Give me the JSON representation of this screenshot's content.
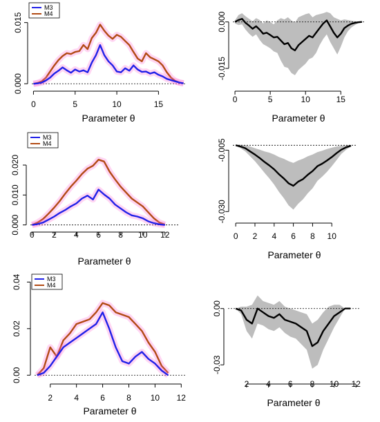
{
  "chart_data": [
    {
      "type": "line",
      "xlabel": "Parameter θ",
      "ylabel": "",
      "xlim": [
        -0.2,
        18.2
      ],
      "ylim": [
        -0.0008,
        0.0185
      ],
      "xticks": [
        0,
        5,
        10,
        15
      ],
      "yticks": [
        0.0,
        0.015
      ],
      "ytick_labels": [
        "0.000",
        "0.015"
      ],
      "xtick_labels": [
        "0",
        "5",
        "10",
        "15"
      ],
      "legend": {
        "position": "top-left",
        "entries": [
          "M3",
          "M4"
        ]
      },
      "series": [
        {
          "name": "M3",
          "color": "#2020e8",
          "x": [
            0,
            0.5,
            1,
            1.5,
            2,
            2.5,
            3,
            3.5,
            4,
            4.5,
            5,
            5.5,
            6,
            6.5,
            7,
            7.5,
            8,
            8.5,
            9,
            9.5,
            10,
            10.5,
            11,
            11.5,
            12,
            12.5,
            13,
            13.5,
            14,
            14.5,
            15,
            15.5,
            16,
            16.5,
            17,
            17.5,
            18
          ],
          "y": [
            0.0,
            0.0001,
            0.0003,
            0.0008,
            0.0015,
            0.0025,
            0.0032,
            0.004,
            0.0033,
            0.0027,
            0.0035,
            0.003,
            0.0033,
            0.0028,
            0.0052,
            0.007,
            0.0095,
            0.007,
            0.0055,
            0.0045,
            0.003,
            0.0028,
            0.0038,
            0.0032,
            0.0045,
            0.0035,
            0.0029,
            0.003,
            0.0025,
            0.0028,
            0.0022,
            0.0018,
            0.0012,
            0.0009,
            0.0006,
            0.0003,
            0.0001
          ]
        },
        {
          "name": "M4",
          "color": "#b24a14",
          "x": [
            0,
            0.5,
            1,
            1.5,
            2,
            2.5,
            3,
            3.5,
            4,
            4.5,
            5,
            5.5,
            6,
            6.5,
            7,
            7.5,
            8,
            8.5,
            9,
            9.5,
            10,
            10.5,
            11,
            11.5,
            12,
            12.5,
            13,
            13.5,
            14,
            14.5,
            15,
            15.5,
            16,
            16.5,
            17,
            17.5,
            18
          ],
          "y": [
            0.0,
            0.0002,
            0.0006,
            0.0015,
            0.003,
            0.0045,
            0.0058,
            0.0068,
            0.0075,
            0.0073,
            0.0078,
            0.008,
            0.0095,
            0.0085,
            0.0112,
            0.0125,
            0.0145,
            0.013,
            0.0118,
            0.011,
            0.012,
            0.0115,
            0.0105,
            0.0095,
            0.0078,
            0.0062,
            0.0055,
            0.0075,
            0.0065,
            0.006,
            0.0055,
            0.0045,
            0.0028,
            0.0015,
            0.0007,
            0.0003,
            0.0001
          ]
        }
      ]
    },
    {
      "type": "area",
      "xlabel": "Parameter θ",
      "ylabel": "",
      "xlim": [
        -0.3,
        18.3
      ],
      "ylim": [
        -0.021,
        0.0035
      ],
      "xticks": [
        0,
        5,
        10,
        15
      ],
      "yticks": [
        0.0,
        -0.015
      ],
      "ytick_labels": [
        "0.000",
        "-0.015"
      ],
      "xtick_labels": [
        "0",
        "5",
        "10",
        "15"
      ],
      "hline": 0,
      "series": [
        {
          "name": "mean",
          "color": "#000000",
          "x": [
            0,
            0.5,
            1,
            1.5,
            2,
            2.5,
            3,
            3.5,
            4,
            4.5,
            5,
            5.5,
            6,
            6.5,
            7,
            7.5,
            8,
            8.5,
            9,
            9.5,
            10,
            10.5,
            11,
            11.5,
            12,
            12.5,
            13,
            13.5,
            14,
            14.5,
            15,
            15.5,
            16,
            16.5,
            17,
            17.5,
            18
          ],
          "y": [
            0.0,
            0.0006,
            0.001,
            -0.0003,
            -0.0012,
            -0.0022,
            -0.0014,
            -0.0025,
            -0.0038,
            -0.0035,
            -0.0042,
            -0.005,
            -0.0048,
            -0.006,
            -0.0072,
            -0.0068,
            -0.0085,
            -0.0092,
            -0.0075,
            -0.0065,
            -0.0055,
            -0.0045,
            -0.005,
            -0.0035,
            -0.002,
            -0.0005,
            0.0005,
            -0.0015,
            -0.0035,
            -0.005,
            -0.0038,
            -0.002,
            -0.0012,
            -0.0006,
            -0.0003,
            -0.0001,
            0.0
          ]
        },
        {
          "name": "band",
          "color": "#bdbdbd",
          "x": [
            0,
            0.5,
            1,
            1.5,
            2,
            2.5,
            3,
            3.5,
            4,
            4.5,
            5,
            5.5,
            6,
            6.5,
            7,
            7.5,
            8,
            8.5,
            9,
            9.5,
            10,
            10.5,
            11,
            11.5,
            12,
            12.5,
            13,
            13.5,
            14,
            14.5,
            15,
            15.5,
            16,
            16.5,
            17,
            17.5,
            18
          ],
          "upper": [
            0.0005,
            0.0022,
            0.0028,
            0.0018,
            0.001,
            0.0002,
            0.0012,
            0.0006,
            -0.0005,
            0.0005,
            0.0,
            -0.0008,
            0.0005,
            0.0012,
            0.0008,
            0.0015,
            0.0005,
            -0.0002,
            0.0015,
            0.002,
            0.0025,
            0.0028,
            0.0015,
            0.0022,
            0.0025,
            0.0028,
            0.0032,
            0.0028,
            0.0015,
            0.001,
            0.0005,
            0.0008,
            0.0006,
            0.0004,
            0.0002,
            0.0001,
            0.0
          ],
          "lower": [
            -0.0005,
            -0.001,
            -0.0008,
            -0.0025,
            -0.0038,
            -0.0048,
            -0.004,
            -0.0058,
            -0.0072,
            -0.0078,
            -0.0085,
            -0.0095,
            -0.01,
            -0.0125,
            -0.0145,
            -0.0148,
            -0.0165,
            -0.0172,
            -0.0155,
            -0.0145,
            -0.0135,
            -0.012,
            -0.0115,
            -0.01,
            -0.0075,
            -0.0055,
            -0.004,
            -0.0065,
            -0.0085,
            -0.0105,
            -0.008,
            -0.005,
            -0.003,
            -0.0018,
            -0.001,
            -0.0004,
            -0.0002
          ]
        }
      ]
    },
    {
      "type": "line",
      "xlabel": "Parameter θ",
      "ylabel": "",
      "xlim": [
        -0.15,
        13.2
      ],
      "ylim": [
        -0.001,
        0.029
      ],
      "xticks": [
        0,
        2,
        4,
        6,
        8,
        10,
        12
      ],
      "yticks": [
        0.0,
        0.01,
        0.02
      ],
      "ytick_labels": [
        "0.000",
        "0.010",
        "0.020"
      ],
      "xtick_labels": [
        "0",
        "2",
        "4",
        "6",
        "8",
        "10",
        "12"
      ],
      "legend": {
        "position": "top-left",
        "entries": [
          "M3",
          "M4"
        ]
      },
      "series": [
        {
          "name": "M3",
          "color": "#2020e8",
          "x": [
            0,
            0.5,
            1,
            1.5,
            2,
            2.5,
            3,
            3.5,
            4,
            4.5,
            5,
            5.5,
            6,
            6.5,
            7,
            7.5,
            8,
            8.5,
            9,
            9.5,
            10,
            10.5,
            11,
            11.5,
            12
          ],
          "y": [
            0.0,
            0.0003,
            0.0008,
            0.0018,
            0.0028,
            0.004,
            0.005,
            0.0062,
            0.0072,
            0.0088,
            0.0098,
            0.0085,
            0.0118,
            0.0102,
            0.0088,
            0.0068,
            0.0055,
            0.0042,
            0.0032,
            0.0028,
            0.0022,
            0.0012,
            0.0006,
            0.0002,
            0.0
          ]
        },
        {
          "name": "M4",
          "color": "#b24a14",
          "x": [
            0,
            0.5,
            1,
            1.5,
            2,
            2.5,
            3,
            3.5,
            4,
            4.5,
            5,
            5.5,
            6,
            6.5,
            7,
            7.5,
            8,
            8.5,
            9,
            9.5,
            10,
            10.5,
            11,
            11.5,
            12
          ],
          "y": [
            0.0,
            0.0008,
            0.002,
            0.0038,
            0.0058,
            0.008,
            0.0105,
            0.0128,
            0.0148,
            0.017,
            0.0188,
            0.0198,
            0.0218,
            0.0212,
            0.0178,
            0.0152,
            0.0128,
            0.0108,
            0.0088,
            0.0075,
            0.0062,
            0.0042,
            0.0022,
            0.0008,
            0.0001
          ]
        }
      ]
    },
    {
      "type": "area",
      "xlabel": "Parameter θ",
      "ylabel": "",
      "xlim": [
        -0.3,
        12.5
      ],
      "ylim": [
        -0.033,
        -0.0015
      ],
      "xticks": [
        0,
        2,
        4,
        6,
        8,
        10
      ],
      "yticks": [
        -0.005,
        -0.03
      ],
      "ytick_labels": [
        "-0.005",
        "-0.030"
      ],
      "xtick_labels": [
        "0",
        "2",
        "4",
        "6",
        "8",
        "10"
      ],
      "hline": -0.003,
      "series": [
        {
          "name": "mean",
          "color": "#000000",
          "x": [
            0,
            0.5,
            1,
            1.5,
            2,
            2.5,
            3,
            3.5,
            4,
            4.5,
            5,
            5.5,
            6,
            6.5,
            7,
            7.5,
            8,
            8.5,
            9,
            9.5,
            10,
            10.5,
            11,
            11.5,
            12
          ],
          "y": [
            -0.003,
            -0.0035,
            -0.0042,
            -0.0055,
            -0.0068,
            -0.0082,
            -0.0098,
            -0.0112,
            -0.0128,
            -0.0148,
            -0.0165,
            -0.0185,
            -0.0195,
            -0.0178,
            -0.0168,
            -0.015,
            -0.0135,
            -0.0115,
            -0.0105,
            -0.0092,
            -0.0078,
            -0.0062,
            -0.0048,
            -0.0038,
            -0.0032
          ]
        },
        {
          "name": "band",
          "color": "#bdbdbd",
          "x": [
            0,
            0.5,
            1,
            1.5,
            2,
            2.5,
            3,
            3.5,
            4,
            4.5,
            5,
            5.5,
            6,
            6.5,
            7,
            7.5,
            8,
            8.5,
            9,
            9.5,
            10,
            10.5,
            11,
            11.5,
            12
          ],
          "upper": [
            -0.0028,
            -0.0028,
            -0.003,
            -0.0035,
            -0.0042,
            -0.0048,
            -0.0055,
            -0.006,
            -0.0068,
            -0.0078,
            -0.0085,
            -0.0095,
            -0.0102,
            -0.0092,
            -0.0085,
            -0.0075,
            -0.0068,
            -0.0058,
            -0.0052,
            -0.0045,
            -0.004,
            -0.0035,
            -0.0032,
            -0.003,
            -0.0029
          ],
          "lower": [
            -0.0032,
            -0.0042,
            -0.0055,
            -0.0075,
            -0.0095,
            -0.0118,
            -0.0142,
            -0.0165,
            -0.019,
            -0.022,
            -0.0245,
            -0.0275,
            -0.0292,
            -0.0268,
            -0.025,
            -0.0225,
            -0.0205,
            -0.0175,
            -0.0158,
            -0.0138,
            -0.0115,
            -0.009,
            -0.0065,
            -0.0048,
            -0.0035
          ]
        }
      ]
    },
    {
      "type": "line",
      "xlabel": "Parameter θ",
      "ylabel": "",
      "xlim": [
        0.8,
        12.3
      ],
      "ylim": [
        -0.002,
        0.041
      ],
      "xticks": [
        2,
        4,
        6,
        8,
        10,
        12
      ],
      "yticks": [
        0.0,
        0.02,
        0.04
      ],
      "ytick_labels": [
        "0.00",
        "0.02",
        "0.04"
      ],
      "xtick_labels": [
        "2",
        "4",
        "6",
        "8",
        "10",
        "12"
      ],
      "legend": {
        "position": "top-left",
        "entries": [
          "M3",
          "M4"
        ]
      },
      "series": [
        {
          "name": "M3",
          "color": "#2020e8",
          "x": [
            1,
            1.5,
            2,
            2.5,
            3,
            3.5,
            4,
            4.5,
            5,
            5.5,
            6,
            6.5,
            7,
            7.5,
            8,
            8.5,
            9,
            9.5,
            10,
            10.5,
            11
          ],
          "y": [
            0.0,
            0.001,
            0.004,
            0.008,
            0.012,
            0.014,
            0.016,
            0.018,
            0.02,
            0.022,
            0.027,
            0.02,
            0.012,
            0.006,
            0.005,
            0.008,
            0.01,
            0.007,
            0.005,
            0.002,
            0.0
          ]
        },
        {
          "name": "M4",
          "color": "#b24a14",
          "x": [
            1,
            1.5,
            2,
            2.5,
            3,
            3.5,
            4,
            4.5,
            5,
            5.5,
            6,
            6.5,
            7,
            7.5,
            8,
            8.5,
            9,
            9.5,
            10,
            10.5,
            11
          ],
          "y": [
            0.0,
            0.003,
            0.012,
            0.008,
            0.015,
            0.018,
            0.022,
            0.023,
            0.024,
            0.027,
            0.031,
            0.03,
            0.027,
            0.026,
            0.025,
            0.022,
            0.019,
            0.014,
            0.01,
            0.004,
            0.001
          ]
        }
      ]
    },
    {
      "type": "area",
      "xlabel": "Parameter θ",
      "ylabel": "",
      "xlim": [
        0.3,
        12.3
      ],
      "ylim": [
        -0.038,
        0.008
      ],
      "xticks": [
        2,
        4,
        6,
        8,
        10,
        12
      ],
      "yticks": [
        0.0,
        -0.03
      ],
      "ytick_labels": [
        "0.00",
        "-0.03"
      ],
      "xtick_labels": [
        "2",
        "4",
        "6",
        "8",
        "10",
        "12"
      ],
      "hline": 0,
      "series": [
        {
          "name": "mean",
          "color": "#000000",
          "x": [
            1,
            1.5,
            2,
            2.5,
            3,
            3.5,
            4,
            4.5,
            5,
            5.5,
            6,
            6.5,
            7,
            7.5,
            8,
            8.5,
            9,
            9.5,
            10,
            10.5,
            11,
            11.5
          ],
          "y": [
            0.0,
            -0.001,
            -0.006,
            -0.008,
            0.0,
            -0.002,
            -0.004,
            -0.005,
            -0.003,
            -0.006,
            -0.007,
            -0.008,
            -0.01,
            -0.012,
            -0.02,
            -0.018,
            -0.012,
            -0.008,
            -0.004,
            -0.002,
            0.0,
            0.0
          ]
        },
        {
          "name": "band",
          "color": "#bdbdbd",
          "x": [
            1,
            1.5,
            2,
            2.5,
            3,
            3.5,
            4,
            4.5,
            5,
            5.5,
            6,
            6.5,
            7,
            7.5,
            8,
            8.5,
            9,
            9.5,
            10,
            10.5,
            11,
            11.5
          ],
          "upper": [
            0.0,
            0.001,
            0.001,
            0.002,
            0.007,
            0.004,
            0.003,
            0.002,
            0.004,
            0.001,
            0.0,
            -0.001,
            -0.002,
            -0.003,
            -0.008,
            -0.006,
            -0.002,
            0.001,
            0.002,
            0.002,
            0.0,
            0.0
          ],
          "lower": [
            0.0,
            -0.003,
            -0.012,
            -0.016,
            -0.008,
            -0.009,
            -0.011,
            -0.012,
            -0.01,
            -0.013,
            -0.015,
            -0.016,
            -0.019,
            -0.022,
            -0.032,
            -0.03,
            -0.022,
            -0.016,
            -0.01,
            -0.005,
            0.0,
            0.0
          ]
        }
      ]
    }
  ]
}
